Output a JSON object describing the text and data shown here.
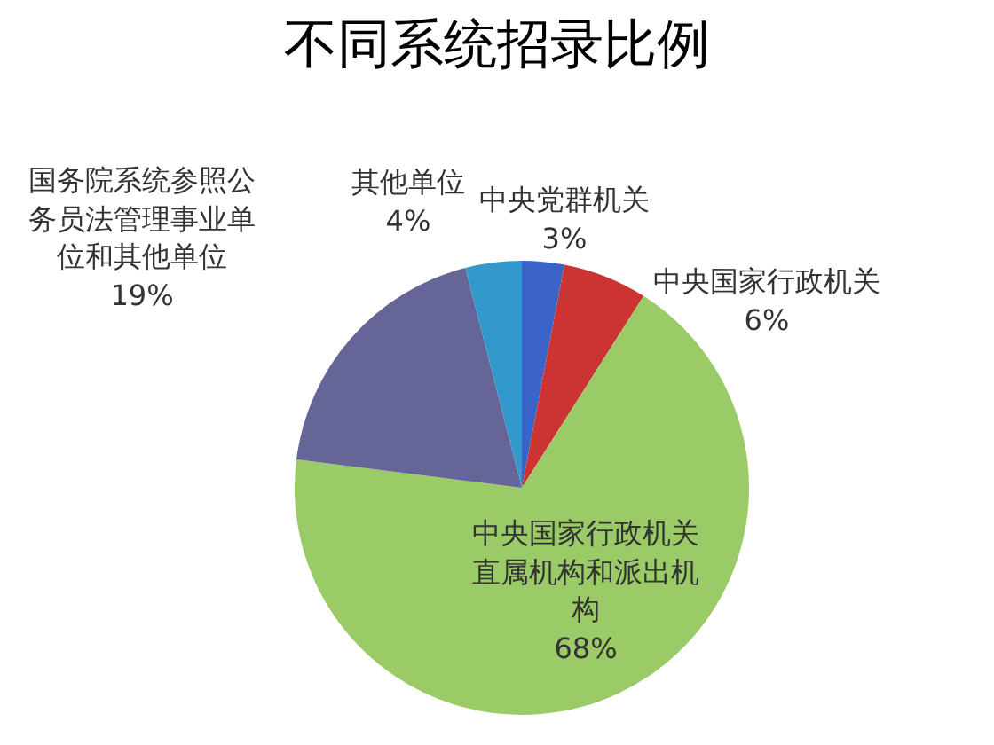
{
  "chart_data": {
    "type": "pie",
    "title": "不同系统招录比例",
    "categories": [
      "中央党群机关",
      "中央国家行政机关",
      "中央国家行政机关直属机构和派出机构",
      "国务院系统参照公务员法管理事业单位和其他单位",
      "其他单位"
    ],
    "values": [
      3,
      6,
      68,
      19,
      4
    ],
    "colors": [
      "#3a64c8",
      "#cc3333",
      "#9acb67",
      "#656597",
      "#3399cc"
    ],
    "value_labels": [
      "3%",
      "6%",
      "68%",
      "19%",
      "4%"
    ]
  }
}
